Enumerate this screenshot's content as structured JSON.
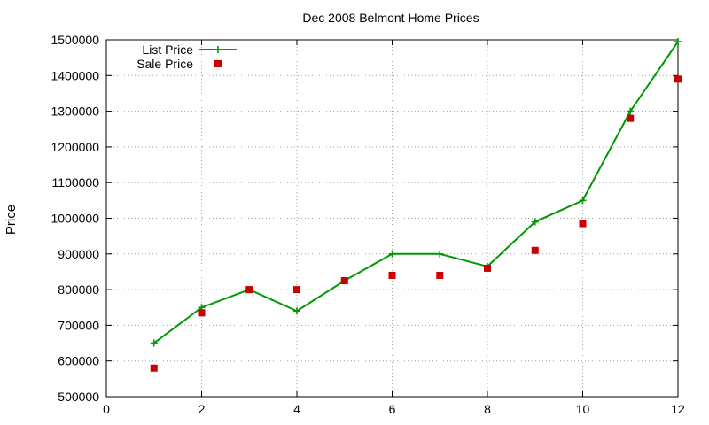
{
  "chart_data": {
    "type": "line",
    "title": "Dec 2008 Belmont Home Prices",
    "xlabel": "",
    "ylabel": "Price",
    "xlim": [
      0,
      12
    ],
    "ylim": [
      500000,
      1500000
    ],
    "x_ticks": [
      0,
      2,
      4,
      6,
      8,
      10,
      12
    ],
    "y_ticks": [
      500000,
      600000,
      700000,
      800000,
      900000,
      1000000,
      1100000,
      1200000,
      1300000,
      1400000,
      1500000
    ],
    "grid": true,
    "legend_position": "top-left",
    "series": [
      {
        "name": "List Price",
        "style": "line-with-plus-markers",
        "color": "#009900",
        "x": [
          1,
          2,
          3,
          4,
          5,
          6,
          7,
          8,
          9,
          10,
          11,
          12
        ],
        "values": [
          650000,
          750000,
          800000,
          740000,
          825000,
          900000,
          900000,
          865000,
          990000,
          1050000,
          1300000,
          1495000
        ]
      },
      {
        "name": "Sale Price",
        "style": "square-markers",
        "color": "#cc0000",
        "x": [
          1,
          2,
          3,
          4,
          5,
          6,
          7,
          8,
          9,
          10,
          11,
          12
        ],
        "values": [
          580000,
          735000,
          800000,
          800000,
          825000,
          840000,
          840000,
          860000,
          910000,
          985000,
          1280000,
          1390000
        ]
      }
    ]
  }
}
